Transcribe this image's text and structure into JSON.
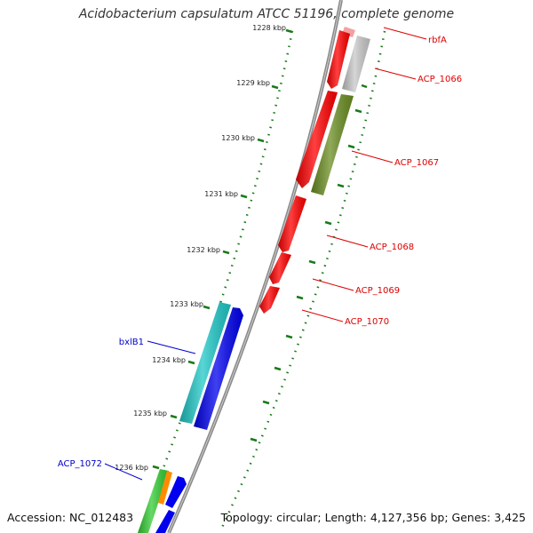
{
  "title": "Acidobacterium capsulatum ATCC 51196, complete genome",
  "footer": {
    "accession": "Accession: NC_012483",
    "topology": "Topology: circular; Length: 4,127,356 bp; Genes: 3,425"
  },
  "ruler": {
    "ticks": [
      "1228 kbp",
      "1229 kbp",
      "1230 kbp",
      "1231 kbp",
      "1232 kbp",
      "1233 kbp",
      "1234 kbp",
      "1235 kbp",
      "1236 kbp"
    ]
  },
  "genes": [
    {
      "id": "rbfA",
      "label": "rbfA",
      "color": "#f4a0a0",
      "label_color": "#dd0000"
    },
    {
      "id": "ACP_1066",
      "label": "ACP_1066",
      "color": "#c8c8c8",
      "label_color": "#dd0000"
    },
    {
      "id": "ACP_1067",
      "label": "ACP_1067",
      "color": "#6b8e23",
      "label_color": "#dd0000"
    },
    {
      "id": "ACP_1068",
      "label": "ACP_1068",
      "color": "#ff0000",
      "label_color": "#dd0000"
    },
    {
      "id": "ACP_1069",
      "label": "ACP_1069",
      "color": "#ff0000",
      "label_color": "#dd0000"
    },
    {
      "id": "ACP_1070",
      "label": "ACP_1070",
      "color": "#ff0000",
      "label_color": "#dd0000"
    },
    {
      "id": "bxlB1",
      "label": "bxlB1",
      "color": "#20c8c8",
      "label_color": "#0000cc"
    },
    {
      "id": "ACP_1072",
      "label": "ACP_1072",
      "color": "#33cc33",
      "label_color": "#0000cc"
    }
  ],
  "colors": {
    "backbone": "#8a8a8a",
    "forward_cds": "#ff0000",
    "reverse_cds": "#0000ee",
    "gc_skew_ticks": "#1a7a1a"
  }
}
